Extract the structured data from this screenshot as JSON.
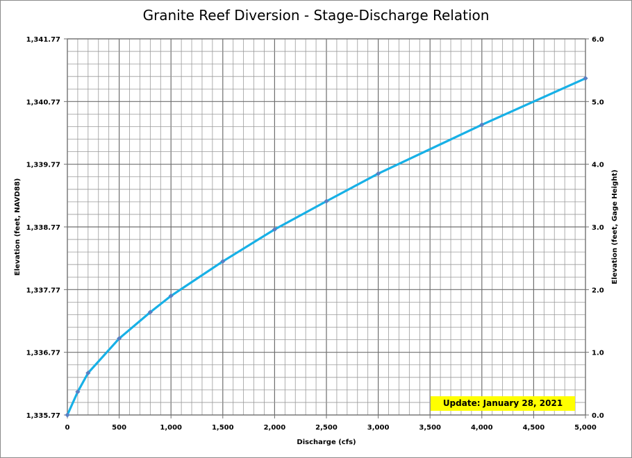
{
  "chart_data": {
    "type": "line",
    "title": "Granite Reef Diversion - Stage-Discharge Relation",
    "xlabel": "Discharge (cfs)",
    "ylabel_left": "Elevation (feet, NAVD88)",
    "ylabel_right": "Elevation (feet, Gage Height)",
    "xlim": [
      0,
      5000
    ],
    "ylim_left": [
      1335.77,
      1341.77
    ],
    "ylim_right": [
      0.0,
      6.0
    ],
    "x_ticks": [
      "0",
      "500",
      "1,000",
      "1,500",
      "2,000",
      "2,500",
      "3,000",
      "3,500",
      "4,000",
      "4,500",
      "5,000"
    ],
    "y_ticks_left": [
      "1,335.77",
      "1,336.77",
      "1,337.77",
      "1,338.77",
      "1,339.77",
      "1,340.77",
      "1,341.77"
    ],
    "y_ticks_right": [
      "0.0",
      "1.0",
      "2.0",
      "3.0",
      "4.0",
      "5.0",
      "6.0"
    ],
    "grid": true,
    "series": [
      {
        "x": [
          0,
          100,
          200,
          500,
          800,
          1000,
          1500,
          2000,
          2500,
          3000,
          4000,
          5000
        ],
        "y": [
          0.0,
          0.37,
          0.67,
          1.22,
          1.64,
          1.9,
          2.45,
          2.96,
          3.41,
          3.85,
          4.63,
          5.37
        ]
      }
    ],
    "line_color": "#17b0e6",
    "marker_color": "#5a7fc2",
    "annotation": "Update: January 28, 2021",
    "annotation_color": "#ffff00"
  }
}
